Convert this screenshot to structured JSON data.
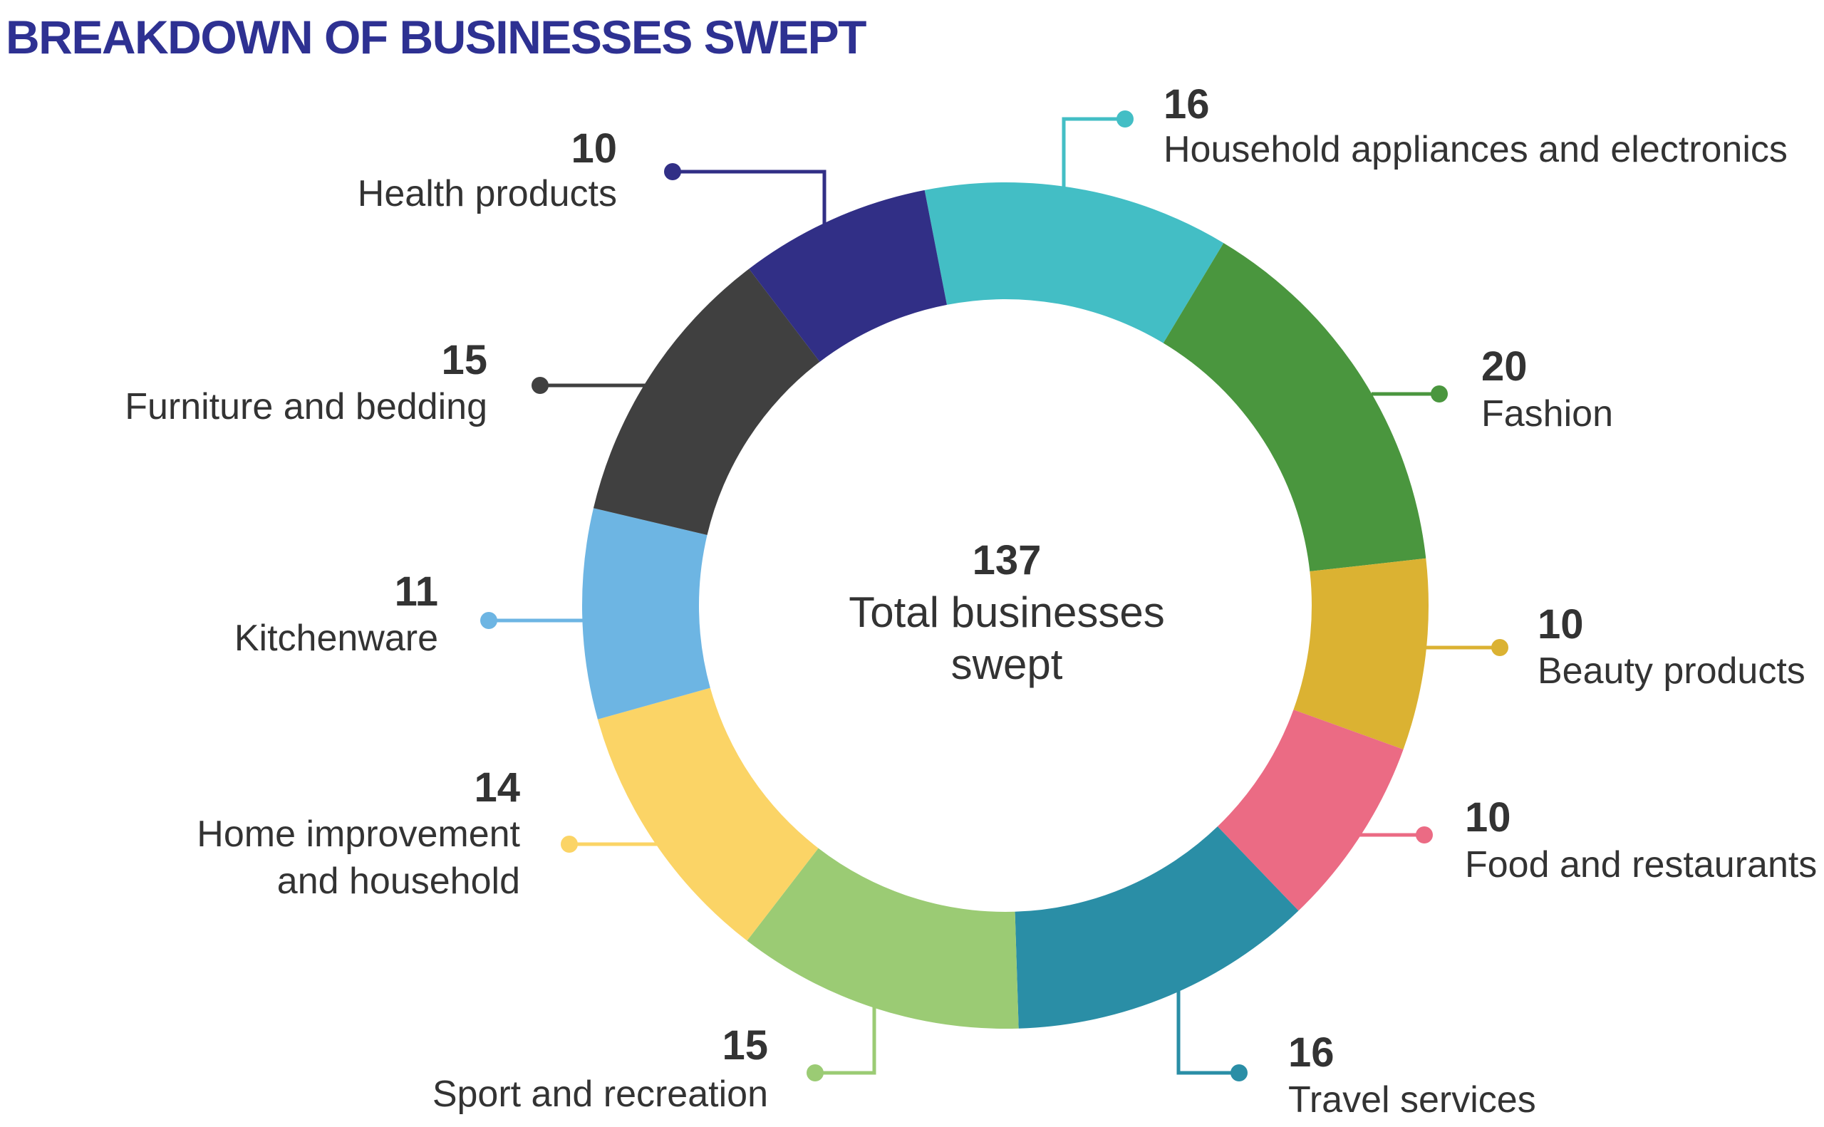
{
  "chart_data": {
    "type": "pie",
    "variant": "donut",
    "title": "BREAKDOWN OF BUSINESSES SWEPT",
    "center_value": "137",
    "center_label_line1": "Total businesses",
    "center_label_line2": "swept",
    "total": 137,
    "slices": [
      {
        "label": "Household appliances and electronics",
        "value": 16,
        "color": "#43BEC5"
      },
      {
        "label": "Fashion",
        "value": 20,
        "color": "#4A963E"
      },
      {
        "label": "Beauty products",
        "value": 10,
        "color": "#DBB232"
      },
      {
        "label": "Food and restaurants",
        "value": 10,
        "color": "#EB6B84"
      },
      {
        "label": "Travel services",
        "value": 16,
        "color": "#2A8EA6"
      },
      {
        "label": "Sport and recreation",
        "value": 15,
        "color": "#9BCB74"
      },
      {
        "label": "Home improvement and household",
        "label_line1": "Home improvement",
        "label_line2": "and household",
        "value": 14,
        "color": "#FBD466"
      },
      {
        "label": "Kitchenware",
        "value": 11,
        "color": "#6DB5E3"
      },
      {
        "label": "Furniture and bedding",
        "value": 15,
        "color": "#404040"
      },
      {
        "label": "Health products",
        "value": 10,
        "color": "#312F86"
      }
    ]
  }
}
